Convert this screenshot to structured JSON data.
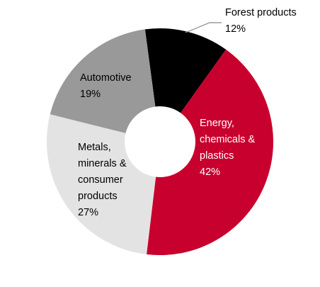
{
  "chart_data": {
    "type": "pie",
    "categories": [
      "Forest products",
      "Energy, chemicals & plastics",
      "Metals, minerals & consumer products",
      "Automotive"
    ],
    "values": [
      12,
      42,
      27,
      19
    ],
    "value_labels": [
      "12%",
      "42%",
      "27%",
      "19%"
    ],
    "colors": [
      "#000000",
      "#c8002d",
      "#e3e3e3",
      "#999999"
    ]
  }
}
